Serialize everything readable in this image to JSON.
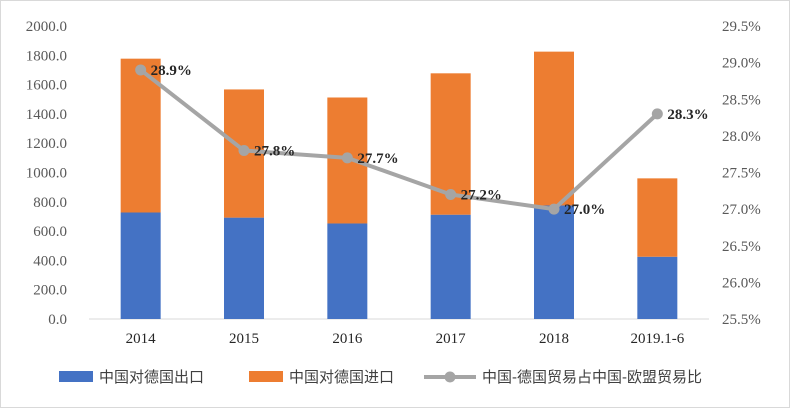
{
  "chart_data": {
    "type": "bar",
    "stacked": true,
    "categories": [
      "2014",
      "2015",
      "2016",
      "2017",
      "2018",
      "2019.1-6"
    ],
    "series": [
      {
        "name": "中国对德国出口",
        "type": "bar",
        "axis": "left",
        "color": "#4472C4",
        "values": [
          727,
          692,
          652,
          712,
          775,
          425
        ]
      },
      {
        "name": "中国对德国进口",
        "type": "bar",
        "axis": "left",
        "color": "#ED7D31",
        "values": [
          1050,
          875,
          860,
          965,
          1050,
          535
        ]
      },
      {
        "name": "中国-德国贸易占中国-欧盟贸易比",
        "type": "line",
        "axis": "right",
        "color": "#A5A5A5",
        "values": [
          28.9,
          27.8,
          27.7,
          27.2,
          27.0,
          28.3
        ],
        "labels": [
          "28.9%",
          "27.8%",
          "27.7%",
          "27.2%",
          "27.0%",
          "28.3%"
        ]
      }
    ],
    "y_left": {
      "ylim": [
        0,
        2000
      ],
      "ticks": [
        "0.0",
        "200.0",
        "400.0",
        "600.0",
        "800.0",
        "1000.0",
        "1200.0",
        "1400.0",
        "1600.0",
        "1800.0",
        "2000.0"
      ]
    },
    "y_right": {
      "ylim": [
        25.5,
        29.5
      ],
      "ticks": [
        "25.5%",
        "26.0%",
        "26.5%",
        "27.0%",
        "27.5%",
        "28.0%",
        "28.5%",
        "29.0%",
        "29.5%"
      ]
    },
    "legend_position": "bottom",
    "grid": false,
    "title": "",
    "xlabel": "",
    "ylabel": ""
  }
}
